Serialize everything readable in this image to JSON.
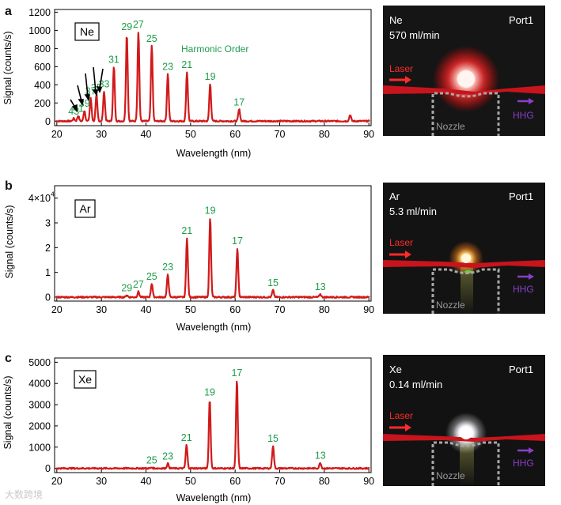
{
  "chart_data": [
    {
      "type": "line",
      "panel_letter": "a",
      "gas": "Ne",
      "xlabel": "Wavelength (nm)",
      "ylabel": "Signal (counts/s)",
      "xlim": [
        19.5,
        90.5
      ],
      "ylim": [
        -50,
        1230
      ],
      "x_ticks": [
        20,
        30,
        40,
        50,
        60,
        70,
        80,
        90
      ],
      "y_ticks": [
        0,
        200,
        400,
        600,
        800,
        1000,
        1200
      ],
      "y_multiplier": "",
      "annotation": "Harmonic Order",
      "series_name": "Ne spectrum",
      "color": "#d11a1a",
      "label_color": "#1f9c4a",
      "peaks": [
        {
          "x": 23.8,
          "y": 30,
          "label": "43"
        },
        {
          "x": 24.8,
          "y": 60,
          "label": "41"
        },
        {
          "x": 26.2,
          "y": 115,
          "label": "39"
        },
        {
          "x": 27.6,
          "y": 250,
          "label": "37"
        },
        {
          "x": 28.9,
          "y": 290,
          "label": "35"
        },
        {
          "x": 30.6,
          "y": 330,
          "label": "33"
        },
        {
          "x": 32.8,
          "y": 600,
          "label": "31"
        },
        {
          "x": 35.7,
          "y": 960,
          "label": "29"
        },
        {
          "x": 38.3,
          "y": 985,
          "label": "27"
        },
        {
          "x": 41.3,
          "y": 830,
          "label": "25"
        },
        {
          "x": 44.9,
          "y": 520,
          "label": "23"
        },
        {
          "x": 49.2,
          "y": 540,
          "label": "21"
        },
        {
          "x": 54.4,
          "y": 410,
          "label": "19"
        },
        {
          "x": 60.9,
          "y": 130,
          "label": "17"
        },
        {
          "x": 85.8,
          "y": 70,
          "label": ""
        }
      ]
    },
    {
      "type": "line",
      "panel_letter": "b",
      "gas": "Ar",
      "xlabel": "Wavelength (nm)",
      "ylabel": "Signal (counts/s)",
      "xlim": [
        19.5,
        90.5
      ],
      "ylim": [
        -1600,
        45000
      ],
      "x_ticks": [
        20,
        30,
        40,
        50,
        60,
        70,
        80,
        90
      ],
      "y_ticks": [
        0,
        10000,
        20000,
        30000,
        40000
      ],
      "y_tick_labels": [
        "0",
        "1",
        "2",
        "3",
        "4×10"
      ],
      "y_multiplier": "4",
      "annotation": "",
      "series_name": "Ar spectrum",
      "color": "#d11a1a",
      "label_color": "#1f9c4a",
      "peaks": [
        {
          "x": 35.7,
          "y": 800,
          "label": "29"
        },
        {
          "x": 38.3,
          "y": 2200,
          "label": "27"
        },
        {
          "x": 41.3,
          "y": 5500,
          "label": "25"
        },
        {
          "x": 44.9,
          "y": 9200,
          "label": "23"
        },
        {
          "x": 49.2,
          "y": 24000,
          "label": "21"
        },
        {
          "x": 54.4,
          "y": 32000,
          "label": "19"
        },
        {
          "x": 60.5,
          "y": 19800,
          "label": "17"
        },
        {
          "x": 68.5,
          "y": 2800,
          "label": "15"
        },
        {
          "x": 79.1,
          "y": 1200,
          "label": "13"
        }
      ]
    },
    {
      "type": "line",
      "panel_letter": "c",
      "gas": "Xe",
      "xlabel": "Wavelength (nm)",
      "ylabel": "Signal (counts/s)",
      "xlim": [
        19.5,
        90.5
      ],
      "ylim": [
        -200,
        5200
      ],
      "x_ticks": [
        20,
        30,
        40,
        50,
        60,
        70,
        80,
        90
      ],
      "y_ticks": [
        0,
        1000,
        2000,
        3000,
        4000,
        5000
      ],
      "y_multiplier": "",
      "annotation": "",
      "series_name": "Xe spectrum",
      "color": "#d11a1a",
      "label_color": "#1f9c4a",
      "peaks": [
        {
          "x": 41.3,
          "y": 40,
          "label": "25"
        },
        {
          "x": 44.9,
          "y": 230,
          "label": "23"
        },
        {
          "x": 49.1,
          "y": 1100,
          "label": "21"
        },
        {
          "x": 54.3,
          "y": 3250,
          "label": "19"
        },
        {
          "x": 60.4,
          "y": 4150,
          "label": "17"
        },
        {
          "x": 68.5,
          "y": 1070,
          "label": "15"
        },
        {
          "x": 79.1,
          "y": 270,
          "label": "13"
        }
      ]
    }
  ],
  "photos": [
    {
      "gas": "Ne",
      "flow": "570 ml/min",
      "port": "Port1",
      "laser": "Laser",
      "hhg": "HHG",
      "nozzle": "Nozzle",
      "glow_color": "#ff2a2a",
      "core_color": "#ffe9e0"
    },
    {
      "gas": "Ar",
      "flow": "5.3 ml/min",
      "port": "Port1",
      "laser": "Laser",
      "hhg": "HHG",
      "nozzle": "Nozzle",
      "glow_color": "#ff9a30",
      "core_color": "#fff0c8"
    },
    {
      "gas": "Xe",
      "flow": "0.14 ml/min",
      "port": "Port1",
      "laser": "Laser",
      "hhg": "HHG",
      "nozzle": "Nozzle",
      "glow_color": "#ffffff",
      "core_color": "#ffffff"
    }
  ],
  "watermark": "大数跨境"
}
